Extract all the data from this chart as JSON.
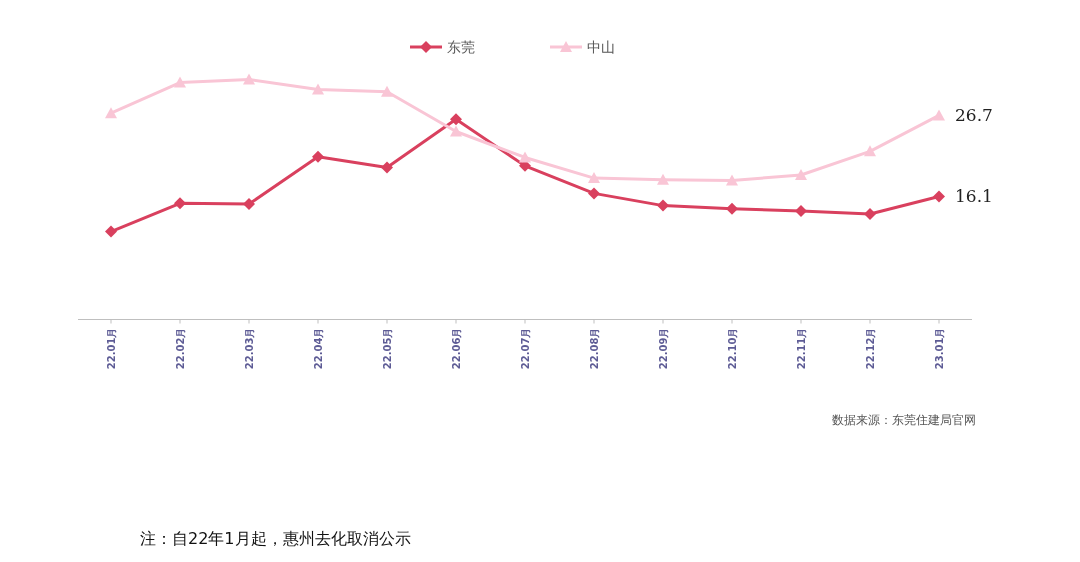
{
  "chart_data": {
    "type": "line",
    "categories": [
      "22.01月",
      "22.02月",
      "22.03月",
      "22.04月",
      "22.05月",
      "22.06月",
      "22.07月",
      "22.08月",
      "22.09月",
      "22.10月",
      "22.11月",
      "22.12月",
      "23.01月"
    ],
    "series": [
      {
        "name": "东莞",
        "color": "#d9405e",
        "marker": "diamond",
        "values": [
          11.5,
          15.2,
          15.1,
          21.3,
          19.9,
          26.2,
          20.1,
          16.5,
          14.9,
          14.5,
          14.2,
          13.8,
          16.1
        ],
        "value_labels": [
          null,
          null,
          null,
          null,
          null,
          null,
          null,
          null,
          null,
          null,
          null,
          null,
          "16.1"
        ]
      },
      {
        "name": "中山",
        "color": "#f9c5d5",
        "marker": "triangle",
        "values": [
          27.0,
          31.0,
          31.4,
          30.1,
          29.8,
          24.6,
          21.2,
          18.5,
          18.3,
          18.2,
          18.9,
          22.0,
          26.7
        ],
        "value_labels": [
          null,
          null,
          null,
          null,
          null,
          null,
          null,
          null,
          null,
          null,
          null,
          null,
          "26.7"
        ]
      }
    ],
    "tick_labels": "x",
    "legend": "top",
    "line_style": "solid",
    "annotations": [
      "数据来源：东莞住建局官网",
      "注：自22年1月起，惠州去化取消公示"
    ]
  }
}
